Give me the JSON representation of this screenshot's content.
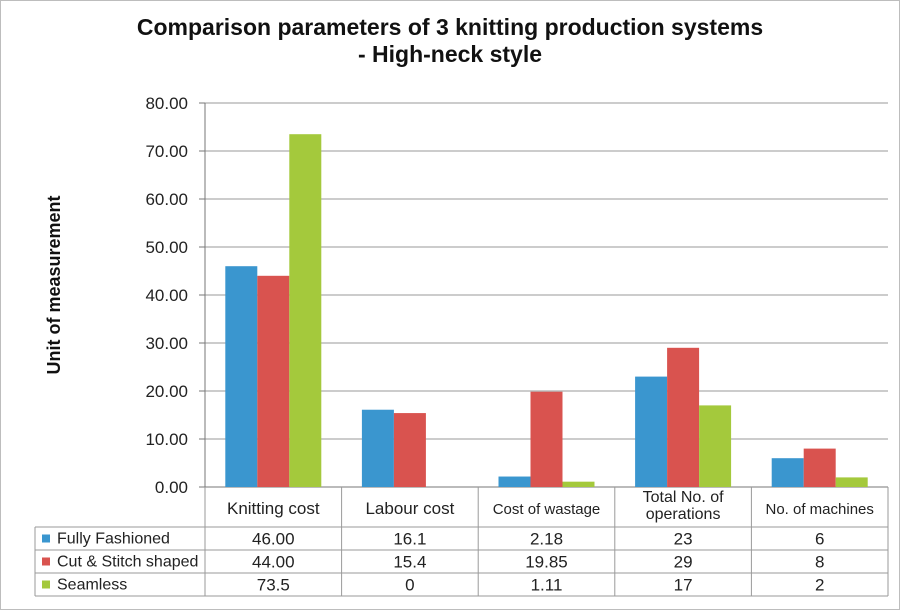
{
  "chart_data": {
    "type": "bar",
    "title": "Comparison parameters of 3 knitting production systems",
    "subtitle": "- High-neck style",
    "ylabel": "Unit of measurement",
    "ylim": [
      0,
      80
    ],
    "yticks": [
      "0.00",
      "10.00",
      "20.00",
      "30.00",
      "40.00",
      "50.00",
      "60.00",
      "70.00",
      "80.00"
    ],
    "grid": true,
    "categories": [
      [
        "Knitting cost"
      ],
      [
        "Labour cost"
      ],
      [
        "Cost of wastage"
      ],
      [
        "Total No. of",
        "operations"
      ],
      [
        "No. of machines"
      ]
    ],
    "series": [
      {
        "name": "Fully Fashioned",
        "color": "#3a96cf",
        "values": [
          46.0,
          16.1,
          2.18,
          23,
          6
        ],
        "table": [
          "46.00",
          "16.1",
          "2.18",
          "23",
          "6"
        ]
      },
      {
        "name": "Cut & Stitch shaped",
        "color": "#d9534f",
        "values": [
          44.0,
          15.4,
          19.85,
          29,
          8
        ],
        "table": [
          "44.00",
          "15.4",
          "19.85",
          "29",
          "8"
        ]
      },
      {
        "name": "Seamless",
        "color": "#a4c93c",
        "values": [
          73.5,
          0,
          1.11,
          17,
          2
        ],
        "table": [
          "73.5",
          "0",
          "1.11",
          "17",
          "2"
        ]
      }
    ]
  }
}
